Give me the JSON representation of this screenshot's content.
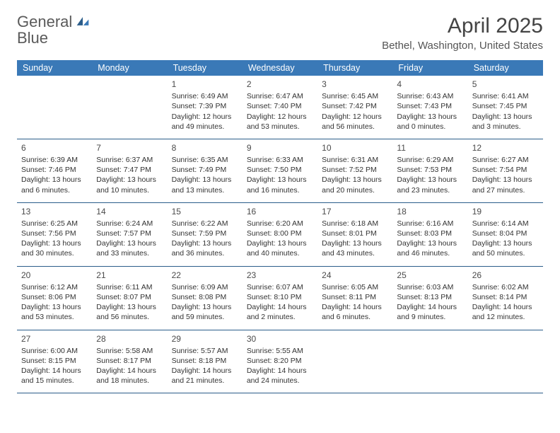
{
  "logo": {
    "text_a": "General",
    "text_b": "Blue"
  },
  "title": "April 2025",
  "location": "Bethel, Washington, United States",
  "colors": {
    "header_bg": "#3a79b7",
    "header_text": "#ffffff",
    "row_border": "#2b5d8a",
    "body_text": "#333333",
    "logo_gray": "#5a5a5a",
    "logo_blue": "#3a79b7"
  },
  "day_labels": [
    "Sunday",
    "Monday",
    "Tuesday",
    "Wednesday",
    "Thursday",
    "Friday",
    "Saturday"
  ],
  "weeks": [
    [
      null,
      null,
      {
        "n": "1",
        "sr": "Sunrise: 6:49 AM",
        "ss": "Sunset: 7:39 PM",
        "d1": "Daylight: 12 hours",
        "d2": "and 49 minutes."
      },
      {
        "n": "2",
        "sr": "Sunrise: 6:47 AM",
        "ss": "Sunset: 7:40 PM",
        "d1": "Daylight: 12 hours",
        "d2": "and 53 minutes."
      },
      {
        "n": "3",
        "sr": "Sunrise: 6:45 AM",
        "ss": "Sunset: 7:42 PM",
        "d1": "Daylight: 12 hours",
        "d2": "and 56 minutes."
      },
      {
        "n": "4",
        "sr": "Sunrise: 6:43 AM",
        "ss": "Sunset: 7:43 PM",
        "d1": "Daylight: 13 hours",
        "d2": "and 0 minutes."
      },
      {
        "n": "5",
        "sr": "Sunrise: 6:41 AM",
        "ss": "Sunset: 7:45 PM",
        "d1": "Daylight: 13 hours",
        "d2": "and 3 minutes."
      }
    ],
    [
      {
        "n": "6",
        "sr": "Sunrise: 6:39 AM",
        "ss": "Sunset: 7:46 PM",
        "d1": "Daylight: 13 hours",
        "d2": "and 6 minutes."
      },
      {
        "n": "7",
        "sr": "Sunrise: 6:37 AM",
        "ss": "Sunset: 7:47 PM",
        "d1": "Daylight: 13 hours",
        "d2": "and 10 minutes."
      },
      {
        "n": "8",
        "sr": "Sunrise: 6:35 AM",
        "ss": "Sunset: 7:49 PM",
        "d1": "Daylight: 13 hours",
        "d2": "and 13 minutes."
      },
      {
        "n": "9",
        "sr": "Sunrise: 6:33 AM",
        "ss": "Sunset: 7:50 PM",
        "d1": "Daylight: 13 hours",
        "d2": "and 16 minutes."
      },
      {
        "n": "10",
        "sr": "Sunrise: 6:31 AM",
        "ss": "Sunset: 7:52 PM",
        "d1": "Daylight: 13 hours",
        "d2": "and 20 minutes."
      },
      {
        "n": "11",
        "sr": "Sunrise: 6:29 AM",
        "ss": "Sunset: 7:53 PM",
        "d1": "Daylight: 13 hours",
        "d2": "and 23 minutes."
      },
      {
        "n": "12",
        "sr": "Sunrise: 6:27 AM",
        "ss": "Sunset: 7:54 PM",
        "d1": "Daylight: 13 hours",
        "d2": "and 27 minutes."
      }
    ],
    [
      {
        "n": "13",
        "sr": "Sunrise: 6:25 AM",
        "ss": "Sunset: 7:56 PM",
        "d1": "Daylight: 13 hours",
        "d2": "and 30 minutes."
      },
      {
        "n": "14",
        "sr": "Sunrise: 6:24 AM",
        "ss": "Sunset: 7:57 PM",
        "d1": "Daylight: 13 hours",
        "d2": "and 33 minutes."
      },
      {
        "n": "15",
        "sr": "Sunrise: 6:22 AM",
        "ss": "Sunset: 7:59 PM",
        "d1": "Daylight: 13 hours",
        "d2": "and 36 minutes."
      },
      {
        "n": "16",
        "sr": "Sunrise: 6:20 AM",
        "ss": "Sunset: 8:00 PM",
        "d1": "Daylight: 13 hours",
        "d2": "and 40 minutes."
      },
      {
        "n": "17",
        "sr": "Sunrise: 6:18 AM",
        "ss": "Sunset: 8:01 PM",
        "d1": "Daylight: 13 hours",
        "d2": "and 43 minutes."
      },
      {
        "n": "18",
        "sr": "Sunrise: 6:16 AM",
        "ss": "Sunset: 8:03 PM",
        "d1": "Daylight: 13 hours",
        "d2": "and 46 minutes."
      },
      {
        "n": "19",
        "sr": "Sunrise: 6:14 AM",
        "ss": "Sunset: 8:04 PM",
        "d1": "Daylight: 13 hours",
        "d2": "and 50 minutes."
      }
    ],
    [
      {
        "n": "20",
        "sr": "Sunrise: 6:12 AM",
        "ss": "Sunset: 8:06 PM",
        "d1": "Daylight: 13 hours",
        "d2": "and 53 minutes."
      },
      {
        "n": "21",
        "sr": "Sunrise: 6:11 AM",
        "ss": "Sunset: 8:07 PM",
        "d1": "Daylight: 13 hours",
        "d2": "and 56 minutes."
      },
      {
        "n": "22",
        "sr": "Sunrise: 6:09 AM",
        "ss": "Sunset: 8:08 PM",
        "d1": "Daylight: 13 hours",
        "d2": "and 59 minutes."
      },
      {
        "n": "23",
        "sr": "Sunrise: 6:07 AM",
        "ss": "Sunset: 8:10 PM",
        "d1": "Daylight: 14 hours",
        "d2": "and 2 minutes."
      },
      {
        "n": "24",
        "sr": "Sunrise: 6:05 AM",
        "ss": "Sunset: 8:11 PM",
        "d1": "Daylight: 14 hours",
        "d2": "and 6 minutes."
      },
      {
        "n": "25",
        "sr": "Sunrise: 6:03 AM",
        "ss": "Sunset: 8:13 PM",
        "d1": "Daylight: 14 hours",
        "d2": "and 9 minutes."
      },
      {
        "n": "26",
        "sr": "Sunrise: 6:02 AM",
        "ss": "Sunset: 8:14 PM",
        "d1": "Daylight: 14 hours",
        "d2": "and 12 minutes."
      }
    ],
    [
      {
        "n": "27",
        "sr": "Sunrise: 6:00 AM",
        "ss": "Sunset: 8:15 PM",
        "d1": "Daylight: 14 hours",
        "d2": "and 15 minutes."
      },
      {
        "n": "28",
        "sr": "Sunrise: 5:58 AM",
        "ss": "Sunset: 8:17 PM",
        "d1": "Daylight: 14 hours",
        "d2": "and 18 minutes."
      },
      {
        "n": "29",
        "sr": "Sunrise: 5:57 AM",
        "ss": "Sunset: 8:18 PM",
        "d1": "Daylight: 14 hours",
        "d2": "and 21 minutes."
      },
      {
        "n": "30",
        "sr": "Sunrise: 5:55 AM",
        "ss": "Sunset: 8:20 PM",
        "d1": "Daylight: 14 hours",
        "d2": "and 24 minutes."
      },
      null,
      null,
      null
    ]
  ]
}
